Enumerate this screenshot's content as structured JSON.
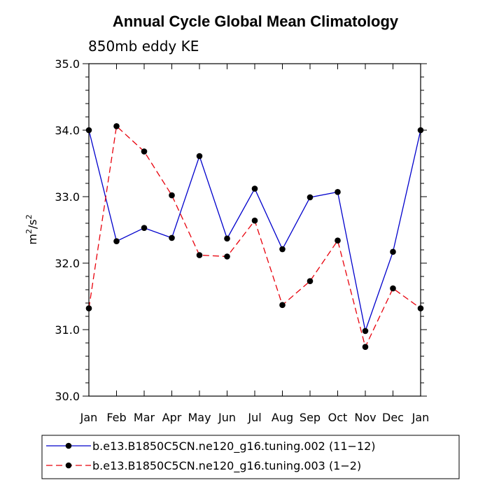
{
  "chart_data": {
    "type": "line",
    "title": "Annual Cycle Global Mean Climatology",
    "subtitle": "850mb eddy KE",
    "xlabel": "",
    "ylabel_base": "m",
    "ylabel_mid": "/s",
    "ylabel_exp": "2",
    "ylim": [
      30.0,
      35.0
    ],
    "yticks": [
      "30.0",
      "31.0",
      "32.0",
      "33.0",
      "34.0",
      "35.0"
    ],
    "categories": [
      "Jan",
      "Feb",
      "Mar",
      "Apr",
      "May",
      "Jun",
      "Jul",
      "Aug",
      "Sep",
      "Oct",
      "Nov",
      "Dec",
      "Jan"
    ],
    "series": [
      {
        "name": "b.e13.B1850C5CN.ne120_g16.tuning.002 (11−12)",
        "color": "#0000cc",
        "dash": "solid",
        "values": [
          34.0,
          32.33,
          32.53,
          32.38,
          33.61,
          32.37,
          33.12,
          32.21,
          32.99,
          33.07,
          30.98,
          32.17,
          34.0
        ]
      },
      {
        "name": "b.e13.B1850C5CN.ne120_g16.tuning.003 (1−2)",
        "color": "#e8000b",
        "dash": "dashed",
        "values": [
          31.32,
          34.06,
          33.68,
          33.02,
          32.12,
          32.1,
          32.64,
          31.37,
          31.73,
          32.34,
          30.74,
          31.62,
          31.32
        ]
      }
    ],
    "legend_position": "bottom"
  }
}
